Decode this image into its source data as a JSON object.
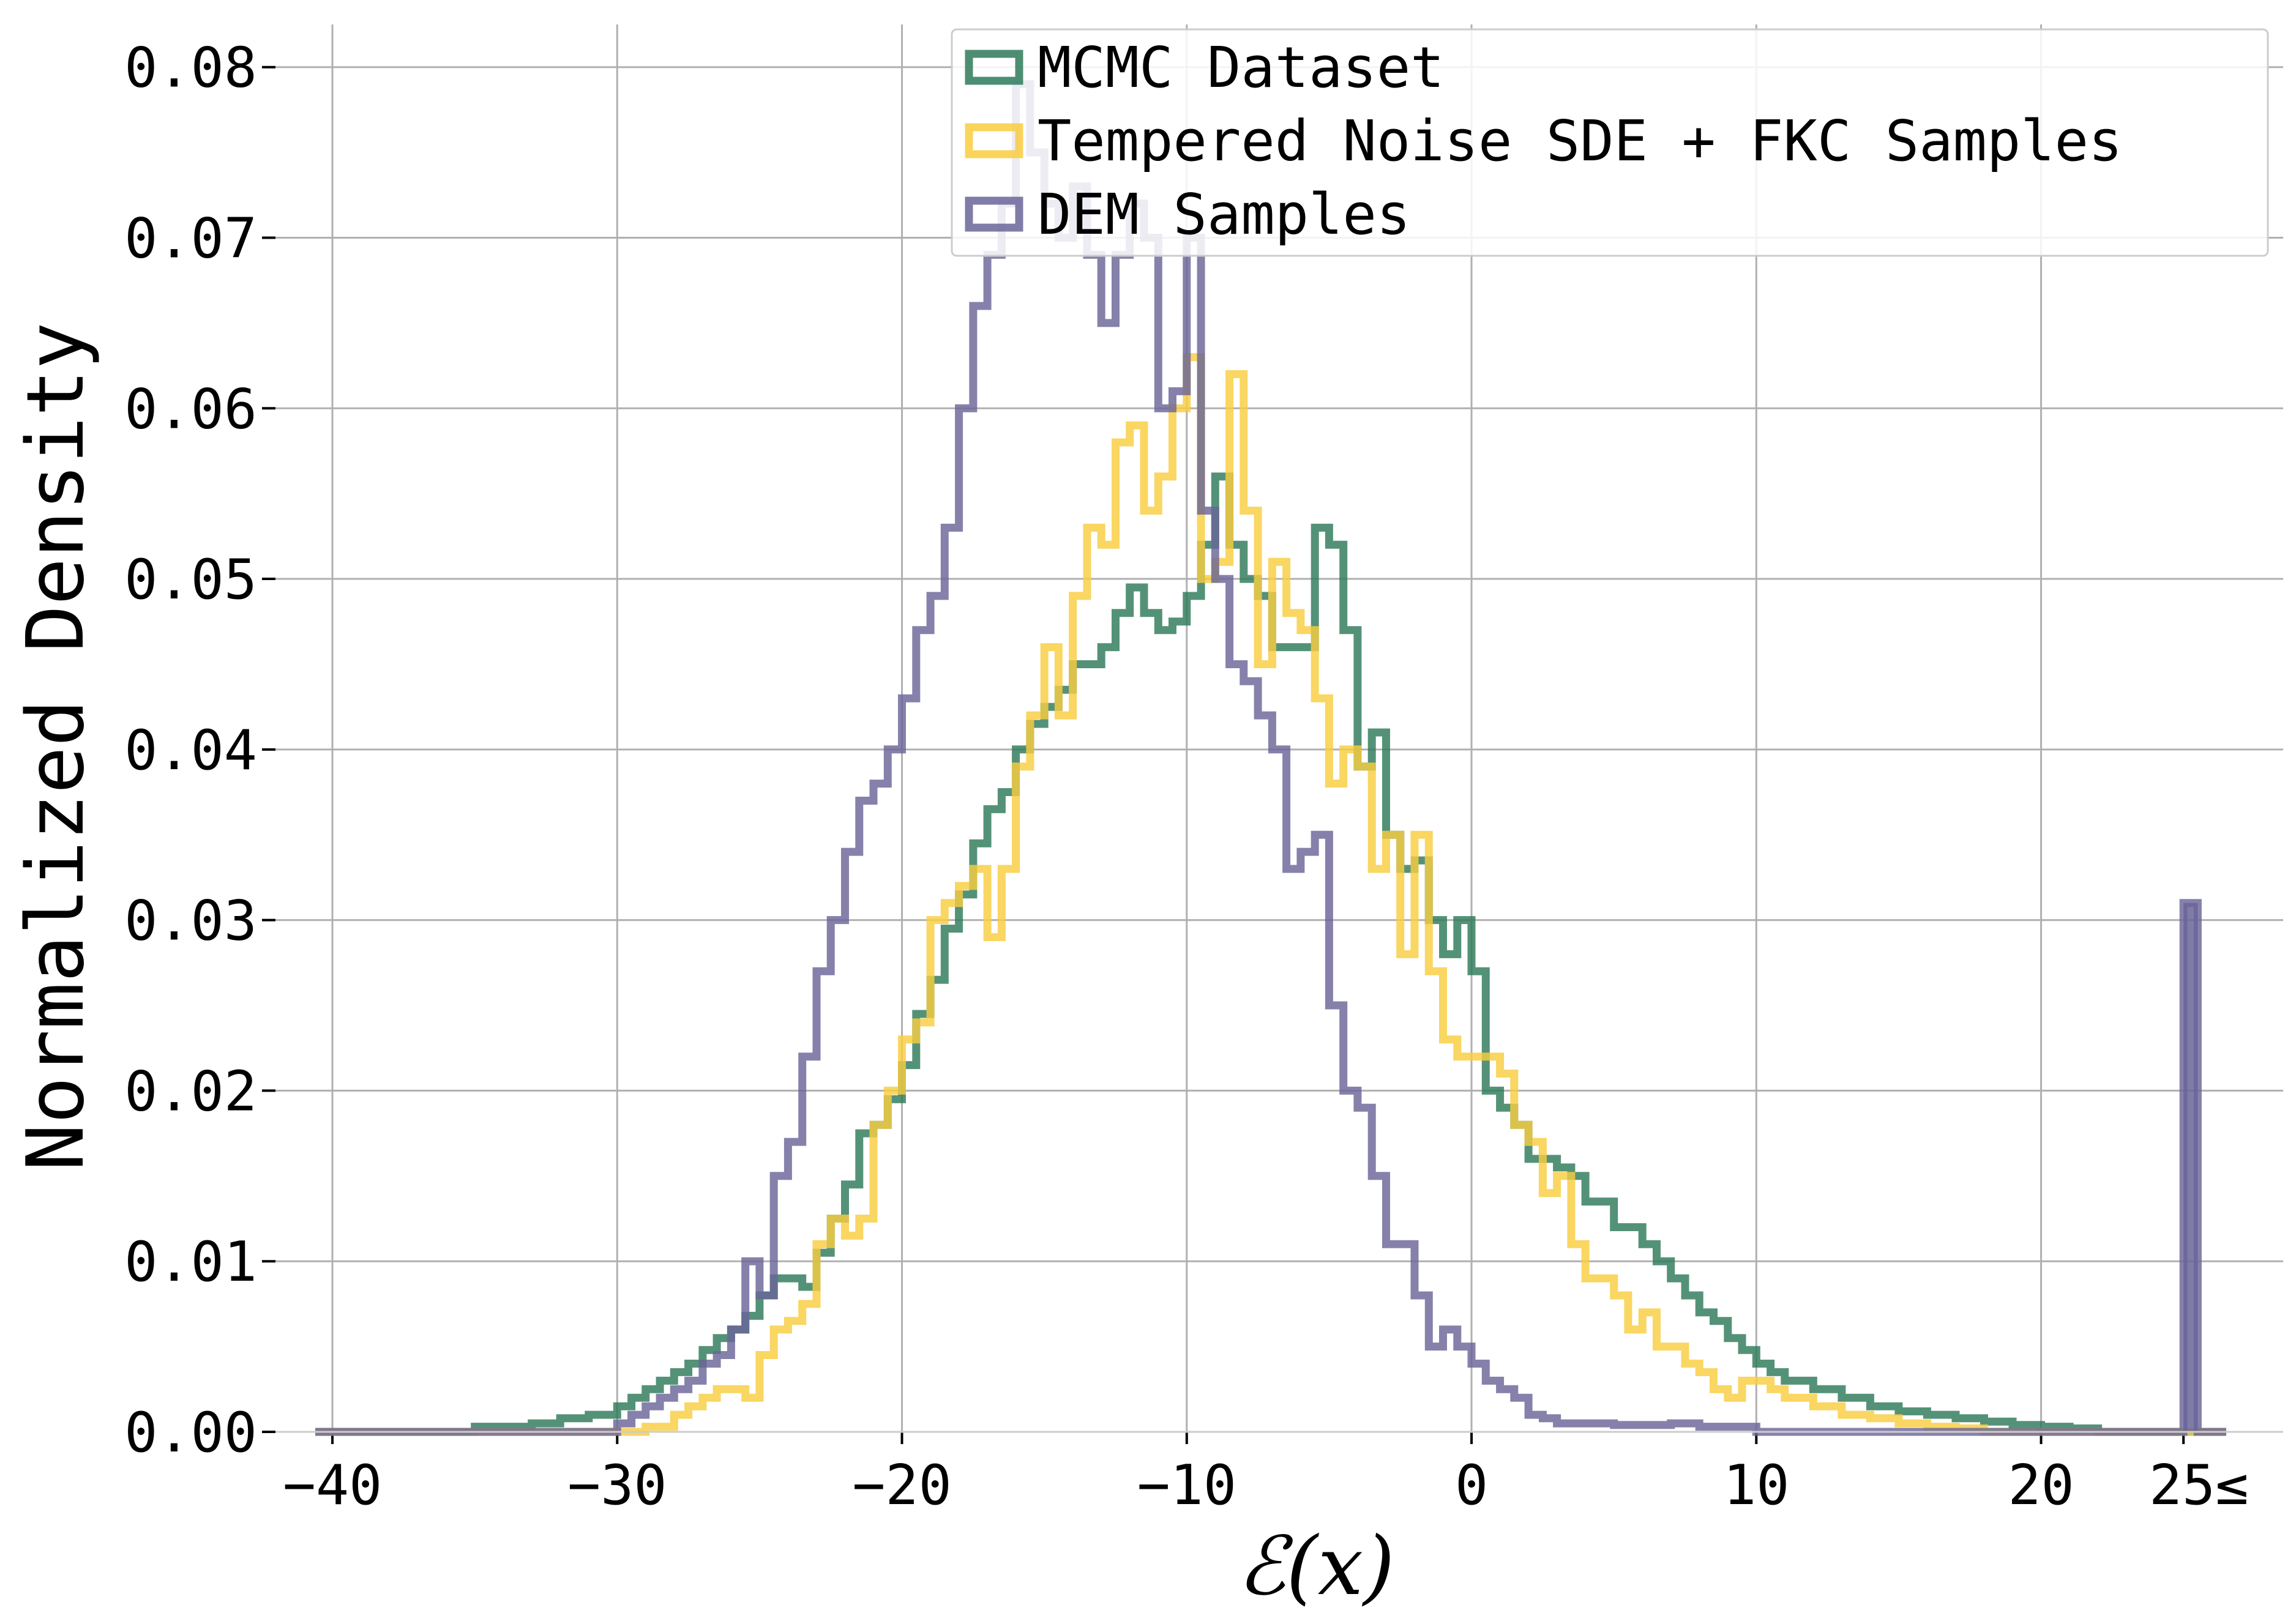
{
  "chart_data": {
    "type": "histogram-step",
    "xlabel": "ℰ(x)",
    "ylabel": "Normalized Density",
    "xlim": [
      -42,
      28.5
    ],
    "ylim": [
      0,
      0.0825
    ],
    "grid": true,
    "legend_position": "top-right",
    "x_ticks": [
      {
        "value": -40,
        "label": "−40"
      },
      {
        "value": -30,
        "label": "−30"
      },
      {
        "value": -20,
        "label": "−20"
      },
      {
        "value": -10,
        "label": "−10"
      },
      {
        "value": 0,
        "label": "0"
      },
      {
        "value": 10,
        "label": "10"
      },
      {
        "value": 20,
        "label": "20"
      },
      {
        "value": 25,
        "label": "25≤"
      }
    ],
    "y_ticks": [
      {
        "value": 0.0,
        "label": "0.00"
      },
      {
        "value": 0.01,
        "label": "0.01"
      },
      {
        "value": 0.02,
        "label": "0.02"
      },
      {
        "value": 0.03,
        "label": "0.03"
      },
      {
        "value": 0.04,
        "label": "0.04"
      },
      {
        "value": 0.05,
        "label": "0.05"
      },
      {
        "value": 0.06,
        "label": "0.06"
      },
      {
        "value": 0.07,
        "label": "0.07"
      },
      {
        "value": 0.08,
        "label": "0.08"
      }
    ],
    "series": [
      {
        "name": "MCMC Dataset",
        "color": "#2e7a5a",
        "points": [
          [
            -40.6,
            0
          ],
          [
            -36,
            0
          ],
          [
            -35,
            0.0003
          ],
          [
            -33,
            0.0005
          ],
          [
            -32,
            0.0008
          ],
          [
            -31,
            0.001
          ],
          [
            -30,
            0.0015
          ],
          [
            -29.5,
            0.002
          ],
          [
            -29,
            0.0025
          ],
          [
            -28.5,
            0.003
          ],
          [
            -28,
            0.0035
          ],
          [
            -27.5,
            0.004
          ],
          [
            -27,
            0.0048
          ],
          [
            -26.5,
            0.0055
          ],
          [
            -26,
            0.006
          ],
          [
            -25.5,
            0.0068
          ],
          [
            -25,
            0.008
          ],
          [
            -24.5,
            0.009
          ],
          [
            -24,
            0.009
          ],
          [
            -23.5,
            0.0085
          ],
          [
            -23,
            0.0105
          ],
          [
            -22.5,
            0.0125
          ],
          [
            -22,
            0.0145
          ],
          [
            -21.5,
            0.0175
          ],
          [
            -21,
            0.018
          ],
          [
            -20.5,
            0.0195
          ],
          [
            -20,
            0.0215
          ],
          [
            -19.5,
            0.0245
          ],
          [
            -19,
            0.0265
          ],
          [
            -18.5,
            0.0295
          ],
          [
            -18,
            0.0315
          ],
          [
            -17.5,
            0.0345
          ],
          [
            -17,
            0.0365
          ],
          [
            -16.5,
            0.0375
          ],
          [
            -16,
            0.04
          ],
          [
            -15.5,
            0.0415
          ],
          [
            -15,
            0.0425
          ],
          [
            -14.5,
            0.0435
          ],
          [
            -14,
            0.045
          ],
          [
            -13.5,
            0.045
          ],
          [
            -13,
            0.046
          ],
          [
            -12.5,
            0.048
          ],
          [
            -12,
            0.0495
          ],
          [
            -11.5,
            0.048
          ],
          [
            -11,
            0.047
          ],
          [
            -10.5,
            0.0475
          ],
          [
            -10,
            0.049
          ],
          [
            -9.5,
            0.052
          ],
          [
            -9,
            0.056
          ],
          [
            -8.5,
            0.052
          ],
          [
            -8,
            0.05
          ],
          [
            -7.5,
            0.049
          ],
          [
            -7,
            0.046
          ],
          [
            -6.5,
            0.046
          ],
          [
            -6,
            0.046
          ],
          [
            -5.5,
            0.053
          ],
          [
            -5,
            0.052
          ],
          [
            -4.5,
            0.047
          ],
          [
            -4,
            0.039
          ],
          [
            -3.5,
            0.041
          ],
          [
            -3,
            0.035
          ],
          [
            -2.5,
            0.033
          ],
          [
            -2,
            0.0335
          ],
          [
            -1.5,
            0.03
          ],
          [
            -1,
            0.028
          ],
          [
            -0.5,
            0.03
          ],
          [
            0,
            0.027
          ],
          [
            0.5,
            0.02
          ],
          [
            1,
            0.019
          ],
          [
            1.5,
            0.018
          ],
          [
            2,
            0.016
          ],
          [
            2.5,
            0.016
          ],
          [
            3,
            0.0155
          ],
          [
            3.5,
            0.015
          ],
          [
            4,
            0.0135
          ],
          [
            4.5,
            0.0135
          ],
          [
            5,
            0.012
          ],
          [
            5.5,
            0.012
          ],
          [
            6,
            0.011
          ],
          [
            6.5,
            0.01
          ],
          [
            7,
            0.009
          ],
          [
            7.5,
            0.008
          ],
          [
            8,
            0.007
          ],
          [
            8.5,
            0.0065
          ],
          [
            9,
            0.0055
          ],
          [
            9.5,
            0.0048
          ],
          [
            10,
            0.004
          ],
          [
            10.5,
            0.0035
          ],
          [
            11,
            0.003
          ],
          [
            12,
            0.0025
          ],
          [
            13,
            0.002
          ],
          [
            14,
            0.0015
          ],
          [
            15,
            0.0012
          ],
          [
            16,
            0.001
          ],
          [
            17,
            0.0008
          ],
          [
            18,
            0.0006
          ],
          [
            19,
            0.0004
          ],
          [
            20,
            0.0003
          ],
          [
            21,
            0.0002
          ],
          [
            22,
            0
          ],
          [
            26.5,
            0
          ]
        ]
      },
      {
        "name": "Tempered Noise SDE + FKC Samples",
        "color": "#f9cd40",
        "points": [
          [
            -40.6,
            0
          ],
          [
            -30,
            0
          ],
          [
            -29,
            0.0003
          ],
          [
            -28,
            0.001
          ],
          [
            -27.5,
            0.0015
          ],
          [
            -27,
            0.002
          ],
          [
            -26.5,
            0.0025
          ],
          [
            -26,
            0.0025
          ],
          [
            -25.5,
            0.002
          ],
          [
            -25,
            0.0045
          ],
          [
            -24.5,
            0.006
          ],
          [
            -24,
            0.0065
          ],
          [
            -23.5,
            0.0075
          ],
          [
            -23,
            0.011
          ],
          [
            -22.5,
            0.0125
          ],
          [
            -22,
            0.0115
          ],
          [
            -21.5,
            0.0125
          ],
          [
            -21,
            0.018
          ],
          [
            -20.5,
            0.02
          ],
          [
            -20,
            0.023
          ],
          [
            -19.5,
            0.024
          ],
          [
            -19,
            0.03
          ],
          [
            -18.5,
            0.031
          ],
          [
            -18,
            0.032
          ],
          [
            -17.5,
            0.033
          ],
          [
            -17,
            0.029
          ],
          [
            -16.5,
            0.033
          ],
          [
            -16,
            0.039
          ],
          [
            -15.5,
            0.042
          ],
          [
            -15,
            0.046
          ],
          [
            -14.5,
            0.042
          ],
          [
            -14,
            0.049
          ],
          [
            -13.5,
            0.053
          ],
          [
            -13,
            0.052
          ],
          [
            -12.5,
            0.058
          ],
          [
            -12,
            0.059
          ],
          [
            -11.5,
            0.054
          ],
          [
            -11,
            0.056
          ],
          [
            -10.5,
            0.06
          ],
          [
            -10,
            0.063
          ],
          [
            -9.5,
            0.05
          ],
          [
            -9,
            0.051
          ],
          [
            -8.5,
            0.062
          ],
          [
            -8,
            0.054
          ],
          [
            -7.5,
            0.045
          ],
          [
            -7,
            0.051
          ],
          [
            -6.5,
            0.048
          ],
          [
            -6,
            0.047
          ],
          [
            -5.5,
            0.043
          ],
          [
            -5,
            0.038
          ],
          [
            -4.5,
            0.04
          ],
          [
            -4,
            0.039
          ],
          [
            -3.5,
            0.033
          ],
          [
            -3,
            0.035
          ],
          [
            -2.5,
            0.028
          ],
          [
            -2,
            0.035
          ],
          [
            -1.5,
            0.027
          ],
          [
            -1,
            0.023
          ],
          [
            -0.5,
            0.022
          ],
          [
            0,
            0.022
          ],
          [
            0.5,
            0.022
          ],
          [
            1,
            0.021
          ],
          [
            1.5,
            0.018
          ],
          [
            2,
            0.017
          ],
          [
            2.5,
            0.014
          ],
          [
            3,
            0.015
          ],
          [
            3.5,
            0.011
          ],
          [
            4,
            0.009
          ],
          [
            4.5,
            0.009
          ],
          [
            5,
            0.008
          ],
          [
            5.5,
            0.006
          ],
          [
            6,
            0.007
          ],
          [
            6.5,
            0.005
          ],
          [
            7,
            0.005
          ],
          [
            7.5,
            0.004
          ],
          [
            8,
            0.0035
          ],
          [
            8.5,
            0.0025
          ],
          [
            9,
            0.002
          ],
          [
            9.5,
            0.003
          ],
          [
            10,
            0.003
          ],
          [
            10.5,
            0.0025
          ],
          [
            11,
            0.002
          ],
          [
            12,
            0.0015
          ],
          [
            13,
            0.001
          ],
          [
            14,
            0.0008
          ],
          [
            15,
            0.0005
          ],
          [
            16,
            0.0003
          ],
          [
            17,
            0.0002
          ],
          [
            18,
            0
          ],
          [
            26.5,
            0
          ]
        ]
      },
      {
        "name": "DEM Samples",
        "color": "#6a6599",
        "points": [
          [
            -40.6,
            0
          ],
          [
            -31,
            0
          ],
          [
            -30,
            0.0005
          ],
          [
            -29.5,
            0.001
          ],
          [
            -29,
            0.0015
          ],
          [
            -28.5,
            0.002
          ],
          [
            -28,
            0.0025
          ],
          [
            -27.5,
            0.003
          ],
          [
            -27,
            0.004
          ],
          [
            -26.5,
            0.0045
          ],
          [
            -26,
            0.006
          ],
          [
            -25.5,
            0.01
          ],
          [
            -25,
            0.008
          ],
          [
            -24.5,
            0.015
          ],
          [
            -24,
            0.017
          ],
          [
            -23.5,
            0.022
          ],
          [
            -23,
            0.027
          ],
          [
            -22.5,
            0.03
          ],
          [
            -22,
            0.034
          ],
          [
            -21.5,
            0.037
          ],
          [
            -21,
            0.038
          ],
          [
            -20.5,
            0.04
          ],
          [
            -20,
            0.043
          ],
          [
            -19.5,
            0.047
          ],
          [
            -19,
            0.049
          ],
          [
            -18.5,
            0.053
          ],
          [
            -18,
            0.06
          ],
          [
            -17.5,
            0.066
          ],
          [
            -17,
            0.069
          ],
          [
            -16.5,
            0.072
          ],
          [
            -16,
            0.079
          ],
          [
            -15.5,
            0.075
          ],
          [
            -15,
            0.072
          ],
          [
            -14.5,
            0.07
          ],
          [
            -14,
            0.073
          ],
          [
            -13.5,
            0.069
          ],
          [
            -13,
            0.065
          ],
          [
            -12.5,
            0.069
          ],
          [
            -12,
            0.072
          ],
          [
            -11.5,
            0.07
          ],
          [
            -11,
            0.06
          ],
          [
            -10.5,
            0.061
          ],
          [
            -10,
            0.07
          ],
          [
            -9.5,
            0.054
          ],
          [
            -9,
            0.05
          ],
          [
            -8.5,
            0.045
          ],
          [
            -8,
            0.044
          ],
          [
            -7.5,
            0.042
          ],
          [
            -7,
            0.04
          ],
          [
            -6.5,
            0.033
          ],
          [
            -6,
            0.034
          ],
          [
            -5.5,
            0.035
          ],
          [
            -5,
            0.025
          ],
          [
            -4.5,
            0.02
          ],
          [
            -4,
            0.019
          ],
          [
            -3.5,
            0.015
          ],
          [
            -3,
            0.011
          ],
          [
            -2.5,
            0.011
          ],
          [
            -2,
            0.008
          ],
          [
            -1.5,
            0.005
          ],
          [
            -1,
            0.006
          ],
          [
            -0.5,
            0.005
          ],
          [
            0,
            0.004
          ],
          [
            0.5,
            0.003
          ],
          [
            1,
            0.0025
          ],
          [
            1.5,
            0.002
          ],
          [
            2,
            0.001
          ],
          [
            2.5,
            0.0008
          ],
          [
            3,
            0.0005
          ],
          [
            5,
            0.0004
          ],
          [
            7,
            0.0005
          ],
          [
            8,
            0.0003
          ],
          [
            10,
            0
          ],
          [
            25,
            0
          ],
          [
            25,
            0.031
          ],
          [
            25.5,
            0.031
          ],
          [
            25.5,
            0
          ],
          [
            26.5,
            0
          ]
        ]
      }
    ]
  }
}
